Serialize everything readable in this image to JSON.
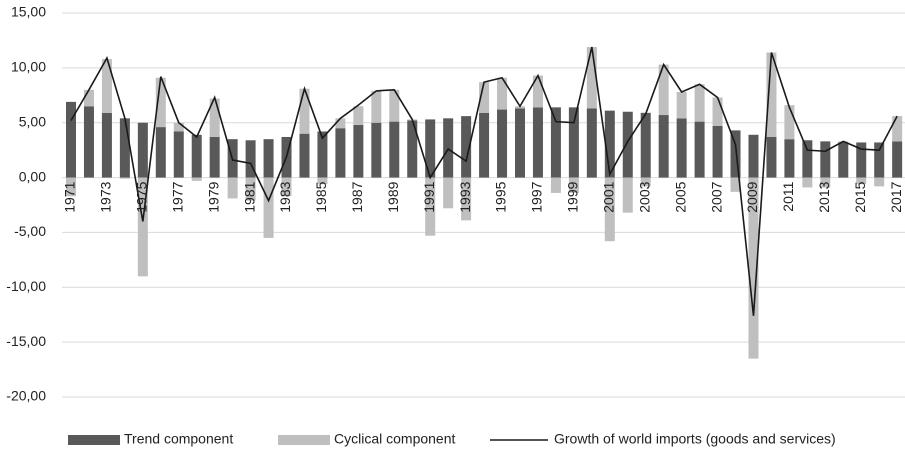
{
  "chart_data": {
    "type": "bar",
    "categories": [
      "1971",
      null,
      "1973",
      null,
      "1975",
      null,
      "1977",
      null,
      "1979",
      null,
      "1981",
      null,
      "1983",
      null,
      "1985",
      null,
      "1987",
      null,
      "1989",
      null,
      "1991",
      null,
      "1993",
      null,
      "1995",
      null,
      "1997",
      null,
      "1999",
      null,
      "2001",
      null,
      "2003",
      null,
      "2005",
      null,
      "2007",
      null,
      "2009",
      null,
      "2011",
      null,
      "2013",
      null,
      "2015",
      null,
      "2017"
    ],
    "series": [
      {
        "name": "Trend component",
        "type": "bar",
        "color": "#595959",
        "values": [
          6.9,
          6.5,
          5.9,
          5.4,
          5.0,
          4.6,
          4.2,
          3.9,
          3.7,
          3.5,
          3.4,
          3.5,
          3.7,
          4.0,
          4.2,
          4.5,
          4.8,
          5.0,
          5.1,
          5.2,
          5.3,
          5.4,
          5.6,
          5.9,
          6.2,
          6.3,
          6.4,
          6.4,
          6.4,
          6.3,
          6.1,
          6.0,
          5.9,
          5.7,
          5.4,
          5.1,
          4.7,
          4.3,
          3.9,
          3.7,
          3.5,
          3.4,
          3.3,
          3.2,
          3.2,
          3.2,
          3.3
        ]
      },
      {
        "name": "Cyclical component",
        "type": "bar",
        "color": "#bfbfbf",
        "values": [
          -1.7,
          1.5,
          4.9,
          -0.1,
          -9.0,
          4.5,
          0.8,
          -0.3,
          3.5,
          -1.9,
          -2.1,
          -5.5,
          -1.7,
          4.1,
          -0.6,
          0.9,
          1.7,
          2.9,
          2.9,
          0.1,
          -5.3,
          -2.8,
          -3.9,
          2.8,
          2.9,
          0.2,
          2.9,
          -1.4,
          -1.4,
          5.6,
          -5.8,
          -3.2,
          -0.8,
          4.6,
          2.4,
          3.4,
          2.6,
          -1.3,
          -16.5,
          7.7,
          3.1,
          -0.9,
          -0.9,
          0.1,
          -0.6,
          -0.8,
          2.3
        ]
      },
      {
        "name": "Growth of world imports (goods and services)",
        "type": "line",
        "color": "#1a1a1a",
        "values": [
          5.2,
          8.0,
          10.9,
          5.4,
          -4.0,
          9.2,
          5.0,
          3.7,
          7.3,
          1.6,
          1.3,
          -2.1,
          1.9,
          8.1,
          3.6,
          5.4,
          6.6,
          7.9,
          8.0,
          5.3,
          0.0,
          2.6,
          1.5,
          8.7,
          9.1,
          6.5,
          9.3,
          5.1,
          5.0,
          11.9,
          0.3,
          3.3,
          5.8,
          10.3,
          7.8,
          8.5,
          7.3,
          3.0,
          -12.6,
          11.4,
          6.4,
          2.5,
          2.4,
          3.3,
          2.6,
          2.5,
          5.6
        ]
      }
    ],
    "ylim": [
      -20,
      15
    ],
    "yticks": [
      {
        "value": -20,
        "label": "-20,00"
      },
      {
        "value": -15,
        "label": "-15,00"
      },
      {
        "value": -10,
        "label": "-10,00"
      },
      {
        "value": -5,
        "label": "-5,00"
      },
      {
        "value": 0,
        "label": "0,00"
      },
      {
        "value": 5,
        "label": "5,00"
      },
      {
        "value": 10,
        "label": "10,00"
      },
      {
        "value": 15,
        "label": "15,00"
      }
    ],
    "grid": true,
    "legend": "bottom"
  }
}
